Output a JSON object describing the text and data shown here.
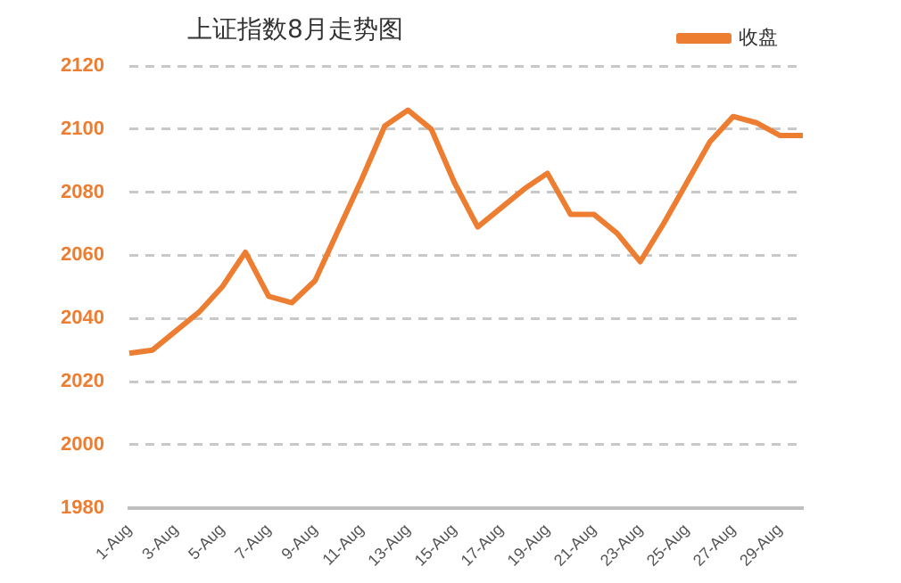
{
  "chart_data": {
    "type": "line",
    "title": "上证指数8月走势图",
    "categories": [
      "1-Aug",
      null,
      "3-Aug",
      null,
      "5-Aug",
      null,
      "7-Aug",
      null,
      "9-Aug",
      null,
      "11-Aug",
      null,
      "13-Aug",
      null,
      "15-Aug",
      null,
      "17-Aug",
      null,
      "19-Aug",
      null,
      "21-Aug",
      null,
      "23-Aug",
      null,
      "25-Aug",
      null,
      "27-Aug",
      null,
      "29-Aug",
      null
    ],
    "series": [
      {
        "name": "收盘",
        "color": "#ed7d31",
        "values": [
          2029,
          2030,
          2036,
          2042,
          2050,
          2061,
          2047,
          2045,
          2052,
          2068,
          2084,
          2101,
          2106,
          2100,
          2083,
          2069,
          2075,
          2081,
          2086,
          2073,
          2073,
          2067,
          2058,
          2070,
          2083,
          2096,
          2104,
          2102,
          2098,
          2098
        ]
      }
    ],
    "ylim": [
      1980,
      2120
    ],
    "yticks": [
      1980,
      2000,
      2020,
      2040,
      2060,
      2080,
      2100,
      2120
    ],
    "grid": "y",
    "legend": "top right",
    "marker": "none",
    "line_style": "solid"
  }
}
